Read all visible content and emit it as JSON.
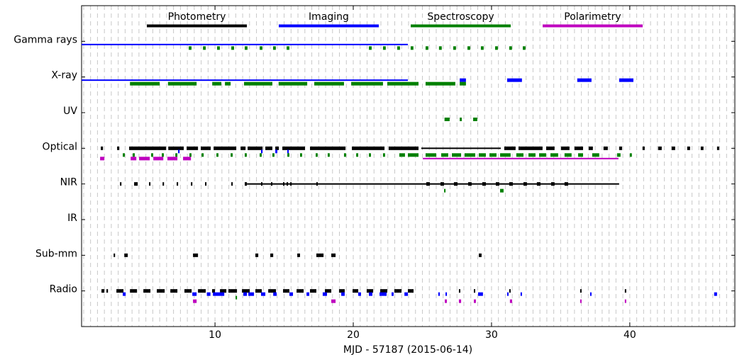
{
  "chart_data": {
    "type": "timeline",
    "xlabel": "MJD - 57187 (2015-06-14)",
    "xlim": [
      0.35,
      47.6
    ],
    "xticks": [
      10,
      20,
      30,
      40
    ],
    "minor_grid_step": 0.5,
    "grid": true,
    "legend": "upper center",
    "categories": [
      "Gamma rays",
      "X-ray",
      "UV",
      "Optical",
      "NIR",
      "IR",
      "Sub-mm",
      "Radio"
    ],
    "series": [
      {
        "name": "Photometry",
        "color": "#000000",
        "values": [
          [],
          [],
          [],
          [
            [
              1.74,
              1.9
            ],
            [
              2.92,
              3.08
            ],
            [
              3.79,
              6.46
            ],
            [
              6.62,
              7.74
            ],
            [
              7.95,
              8.77
            ],
            [
              8.97,
              9.69
            ],
            [
              9.9,
              11.54
            ],
            [
              11.85,
              12.21
            ],
            [
              12.36,
              13.44
            ],
            [
              13.64,
              14.15
            ],
            [
              14.36,
              14.62
            ],
            [
              14.87,
              16.51
            ],
            [
              16.87,
              19.44
            ],
            [
              19.9,
              22.26
            ],
            [
              22.56,
              24.72
            ],
            [
              24.92,
              30.67
            ],
            [
              30.92,
              31.74
            ],
            [
              31.95,
              33.69
            ],
            [
              33.95,
              34.56
            ],
            [
              35.03,
              35.64
            ],
            [
              36.0,
              36.62
            ],
            [
              37.03,
              37.33
            ],
            [
              38.1,
              38.41
            ],
            [
              39.23,
              39.44
            ],
            [
              40.92,
              41.08
            ],
            [
              42.05,
              42.31
            ],
            [
              43.03,
              43.28
            ],
            [
              44.15,
              44.36
            ],
            [
              45.13,
              45.33
            ],
            [
              46.31,
              46.46
            ]
          ],
          [
            [
              3.13,
              3.23
            ],
            [
              4.15,
              4.41
            ],
            [
              5.23,
              5.33
            ],
            [
              6.21,
              6.31
            ],
            [
              7.23,
              7.33
            ],
            [
              8.26,
              8.36
            ],
            [
              9.28,
              9.38
            ],
            [
              11.18,
              11.28
            ],
            [
              12.15,
              12.31
            ],
            [
              12.31,
              39.23
            ],
            [
              13.33,
              13.43
            ],
            [
              14.05,
              14.15
            ],
            [
              14.92,
              15.02
            ],
            [
              15.18,
              15.28
            ],
            [
              15.44,
              15.54
            ],
            [
              17.33,
              17.43
            ],
            [
              25.28,
              25.54
            ],
            [
              26.31,
              26.56
            ],
            [
              27.28,
              27.54
            ],
            [
              28.31,
              28.56
            ],
            [
              29.33,
              29.59
            ],
            [
              30.31,
              30.56
            ],
            [
              31.28,
              31.54
            ],
            [
              32.31,
              32.56
            ],
            [
              33.28,
              33.54
            ],
            [
              34.31,
              34.56
            ],
            [
              35.28,
              35.54
            ]
          ],
          [],
          [
            [
              2.67,
              2.77
            ],
            [
              3.44,
              3.69
            ],
            [
              8.41,
              8.77
            ],
            [
              12.92,
              13.13
            ],
            [
              14.0,
              14.21
            ],
            [
              15.95,
              16.15
            ],
            [
              17.33,
              17.85
            ],
            [
              18.41,
              18.72
            ],
            [
              29.08,
              29.28
            ]
          ],
          [
            [
              1.79,
              2.0
            ],
            [
              2.15,
              2.26
            ],
            [
              2.87,
              3.38
            ],
            [
              3.85,
              4.36
            ],
            [
              4.82,
              5.33
            ],
            [
              5.79,
              6.36
            ],
            [
              6.77,
              7.28
            ],
            [
              7.79,
              8.31
            ],
            [
              8.77,
              9.33
            ],
            [
              9.79,
              10.0
            ],
            [
              10.36,
              10.82
            ],
            [
              10.97,
              11.59
            ],
            [
              11.95,
              12.51
            ],
            [
              12.92,
              13.38
            ],
            [
              13.85,
              14.41
            ],
            [
              14.92,
              15.38
            ],
            [
              15.9,
              16.41
            ],
            [
              16.87,
              17.33
            ],
            [
              17.95,
              18.41
            ],
            [
              18.97,
              19.38
            ],
            [
              19.95,
              20.36
            ],
            [
              20.97,
              21.44
            ],
            [
              21.95,
              22.46
            ],
            [
              22.97,
              23.49
            ],
            [
              23.95,
              24.36
            ],
            [
              27.64,
              27.74
            ],
            [
              28.72,
              28.82
            ],
            [
              31.28,
              31.38
            ],
            [
              36.41,
              36.51
            ],
            [
              39.64,
              39.74
            ]
          ]
        ]
      },
      {
        "name": "Imaging",
        "color": "#0000ff",
        "values": [
          [
            [
              0.35,
              23.95
            ]
          ],
          [
            [
              0.35,
              23.95
            ],
            [
              27.7,
              28.15
            ],
            [
              31.13,
              32.2
            ],
            [
              36.2,
              37.23
            ],
            [
              39.23,
              40.26
            ]
          ],
          [],
          [
            [
              7.33,
              7.44
            ],
            [
              13.33,
              13.44
            ],
            [
              14.36,
              14.51
            ],
            [
              15.23,
              15.33
            ]
          ],
          [],
          [],
          [],
          [
            [
              3.33,
              3.54
            ],
            [
              8.36,
              8.67
            ],
            [
              9.41,
              9.67
            ],
            [
              9.85,
              10.67
            ],
            [
              12.05,
              12.31
            ],
            [
              12.41,
              12.82
            ],
            [
              13.33,
              13.64
            ],
            [
              14.21,
              14.46
            ],
            [
              15.38,
              15.64
            ],
            [
              16.62,
              16.82
            ],
            [
              17.79,
              18.1
            ],
            [
              19.13,
              19.38
            ],
            [
              20.36,
              20.56
            ],
            [
              21.13,
              21.38
            ],
            [
              21.9,
              22.41
            ],
            [
              22.77,
              22.92
            ],
            [
              23.7,
              23.95
            ],
            [
              26.15,
              26.26
            ],
            [
              26.67,
              26.77
            ],
            [
              29.03,
              29.38
            ],
            [
              31.13,
              31.23
            ],
            [
              32.1,
              32.2
            ],
            [
              37.13,
              37.23
            ],
            [
              46.1,
              46.31
            ]
          ]
        ]
      },
      {
        "name": "Spectroscopy",
        "color": "#008000",
        "values": [
          [
            [
              8.1,
              8.3
            ],
            [
              9.13,
              9.33
            ],
            [
              10.15,
              10.35
            ],
            [
              11.18,
              11.38
            ],
            [
              12.15,
              12.35
            ],
            [
              13.23,
              13.43
            ],
            [
              14.2,
              14.4
            ],
            [
              15.18,
              15.38
            ],
            [
              21.13,
              21.33
            ],
            [
              22.15,
              22.35
            ],
            [
              23.18,
              23.38
            ],
            [
              24.15,
              24.35
            ],
            [
              25.23,
              25.43
            ],
            [
              26.2,
              26.4
            ],
            [
              27.23,
              27.43
            ],
            [
              28.26,
              28.46
            ],
            [
              29.23,
              29.43
            ],
            [
              30.26,
              30.46
            ],
            [
              31.28,
              31.48
            ],
            [
              32.26,
              32.46
            ]
          ],
          [
            [
              3.85,
              6.0
            ],
            [
              6.6,
              8.67
            ],
            [
              9.8,
              10.46
            ],
            [
              10.72,
              11.13
            ],
            [
              12.1,
              14.15
            ],
            [
              14.6,
              16.67
            ],
            [
              17.18,
              19.33
            ],
            [
              19.85,
              22.15
            ],
            [
              22.46,
              24.72
            ],
            [
              25.23,
              27.38
            ],
            [
              27.7,
              28.15
            ]
          ],
          [
            [
              26.6,
              26.97
            ],
            [
              27.7,
              27.85
            ],
            [
              28.67,
              28.97
            ]
          ],
          [
            [
              3.33,
              3.48
            ],
            [
              4.05,
              4.2
            ],
            [
              5.38,
              5.53
            ],
            [
              6.15,
              6.3
            ],
            [
              7.13,
              7.28
            ],
            [
              8.15,
              8.3
            ],
            [
              9.03,
              9.18
            ],
            [
              10.1,
              10.25
            ],
            [
              11.13,
              11.28
            ],
            [
              12.15,
              12.3
            ],
            [
              13.23,
              13.38
            ],
            [
              14.15,
              14.3
            ],
            [
              15.23,
              15.38
            ],
            [
              16.15,
              16.3
            ],
            [
              17.28,
              17.43
            ],
            [
              18.15,
              18.3
            ],
            [
              19.33,
              19.48
            ],
            [
              20.21,
              20.36
            ],
            [
              21.13,
              21.28
            ],
            [
              22.15,
              22.3
            ],
            [
              23.33,
              23.74
            ],
            [
              23.95,
              24.72
            ],
            [
              25.23,
              26.0
            ],
            [
              26.36,
              26.87
            ],
            [
              27.13,
              27.8
            ],
            [
              28.05,
              28.82
            ],
            [
              29.08,
              29.59
            ],
            [
              29.85,
              30.36
            ],
            [
              30.62,
              31.38
            ],
            [
              31.79,
              32.31
            ],
            [
              32.67,
              33.18
            ],
            [
              33.44,
              33.95
            ],
            [
              34.26,
              34.82
            ],
            [
              35.28,
              35.79
            ],
            [
              36.26,
              36.62
            ],
            [
              37.28,
              37.79
            ],
            [
              39.08,
              39.33
            ],
            [
              40.0,
              40.15
            ]
          ],
          [
            [
              26.57,
              26.67
            ],
            [
              30.62,
              30.87
            ]
          ],
          [],
          [],
          [
            [
              11.49,
              11.59
            ]
          ]
        ]
      },
      {
        "name": "Polarimetry",
        "color": "#bf00bf",
        "values": [
          [],
          [],
          [],
          [
            [
              1.69,
              2.0
            ],
            [
              3.9,
              4.31
            ],
            [
              4.51,
              5.28
            ],
            [
              5.54,
              6.26
            ],
            [
              6.56,
              7.28
            ],
            [
              7.69,
              8.26
            ],
            [
              25.03,
              39.18
            ]
          ],
          [],
          [],
          [],
          [
            [
              8.41,
              8.67
            ],
            [
              18.41,
              18.72
            ],
            [
              26.62,
              26.77
            ],
            [
              27.64,
              27.8
            ],
            [
              28.72,
              28.87
            ],
            [
              31.33,
              31.49
            ],
            [
              36.41,
              36.51
            ],
            [
              39.64,
              39.74
            ]
          ]
        ]
      }
    ]
  }
}
